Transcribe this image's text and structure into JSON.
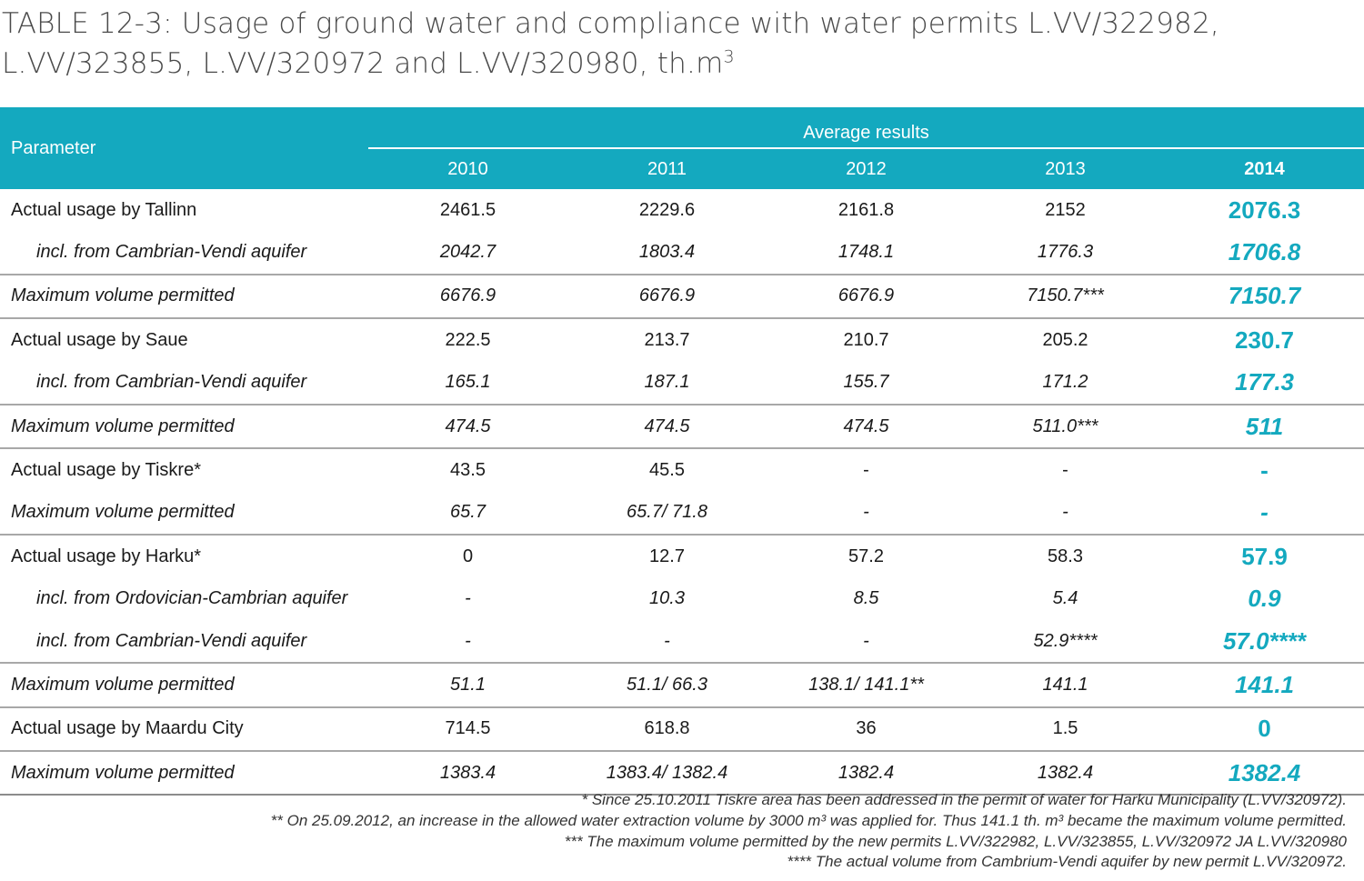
{
  "title": {
    "line1": "TABLE 12-3: Usage of ground water and compliance with water permits L.VV/322982,",
    "line2": "L.VV/323855, L.VV/320972 and L.VV/320980, th.m",
    "sup": "3"
  },
  "table": {
    "param_header": "Parameter",
    "group_header": "Average results",
    "years": [
      "2010",
      "2011",
      "2012",
      "2013",
      "2014"
    ],
    "rows": [
      {
        "label": "Actual usage by Tallinn",
        "values": [
          "2461.5",
          "2229.6",
          "2161.8",
          "2152",
          "2076.3"
        ]
      },
      {
        "label": "incl. from Cambrian-Vendi aquifer",
        "values": [
          "2042.7",
          "1803.4",
          "1748.1",
          "1776.3",
          "1706.8"
        ]
      },
      {
        "label": "Maximum volume permitted",
        "values": [
          "6676.9",
          "6676.9",
          "6676.9",
          "7150.7***",
          "7150.7"
        ]
      },
      {
        "label": "Actual usage by Saue",
        "values": [
          "222.5",
          "213.7",
          "210.7",
          "205.2",
          "230.7"
        ]
      },
      {
        "label": "incl. from Cambrian-Vendi aquifer",
        "values": [
          "165.1",
          "187.1",
          "155.7",
          "171.2",
          "177.3"
        ]
      },
      {
        "label": "Maximum volume permitted",
        "values": [
          "474.5",
          "474.5",
          "474.5",
          "511.0***",
          "511"
        ]
      },
      {
        "label": "Actual usage by Tiskre*",
        "values": [
          "43.5",
          "45.5",
          "-",
          "-",
          "-"
        ]
      },
      {
        "label": "Maximum volume permitted",
        "values": [
          "65.7",
          "65.7/ 71.8",
          "-",
          "-",
          "-"
        ]
      },
      {
        "label": "Actual usage by Harku*",
        "values": [
          "0",
          "12.7",
          "57.2",
          "58.3",
          "57.9"
        ]
      },
      {
        "label": "incl. from Ordovician-Cambrian aquifer",
        "values": [
          "-",
          "10.3",
          "8.5",
          "5.4",
          "0.9"
        ]
      },
      {
        "label": "incl. from Cambrian-Vendi aquifer",
        "values": [
          "-",
          "-",
          "-",
          "52.9****",
          "57.0****"
        ]
      },
      {
        "label": "Maximum volume permitted",
        "values": [
          "51.1",
          "51.1/ 66.3",
          "138.1/ 141.1**",
          "141.1",
          "141.1"
        ]
      },
      {
        "label": "Actual usage by Maardu City",
        "values": [
          "714.5",
          "618.8",
          "36",
          "1.5",
          "0"
        ]
      },
      {
        "label": "Maximum volume permitted",
        "values": [
          "1383.4",
          "1383.4/ 1382.4",
          "1382.4",
          "1382.4",
          "1382.4"
        ]
      }
    ]
  },
  "footnotes": [
    "* Since 25.10.2011 Tiskre area has been addressed in the permit of water for Harku Municipality (L.VV/320972).",
    "** On 25.09.2012, an increase in the allowed water extraction volume by 3000 m³ was applied for. Thus 141.1 th. m³ became the maximum volume permitted.",
    "*** The maximum volume permitted by the new permits L.VV/322982, L.VV/323855, L.VV/320972 JA L.VV/320980",
    "**** The actual volume from Cambrium-Vendi aquifer by new permit L.VV/320972."
  ],
  "colors": {
    "accent": "#14a9bf",
    "header_text": "#ffffff",
    "divider": "#a8a8a8"
  }
}
